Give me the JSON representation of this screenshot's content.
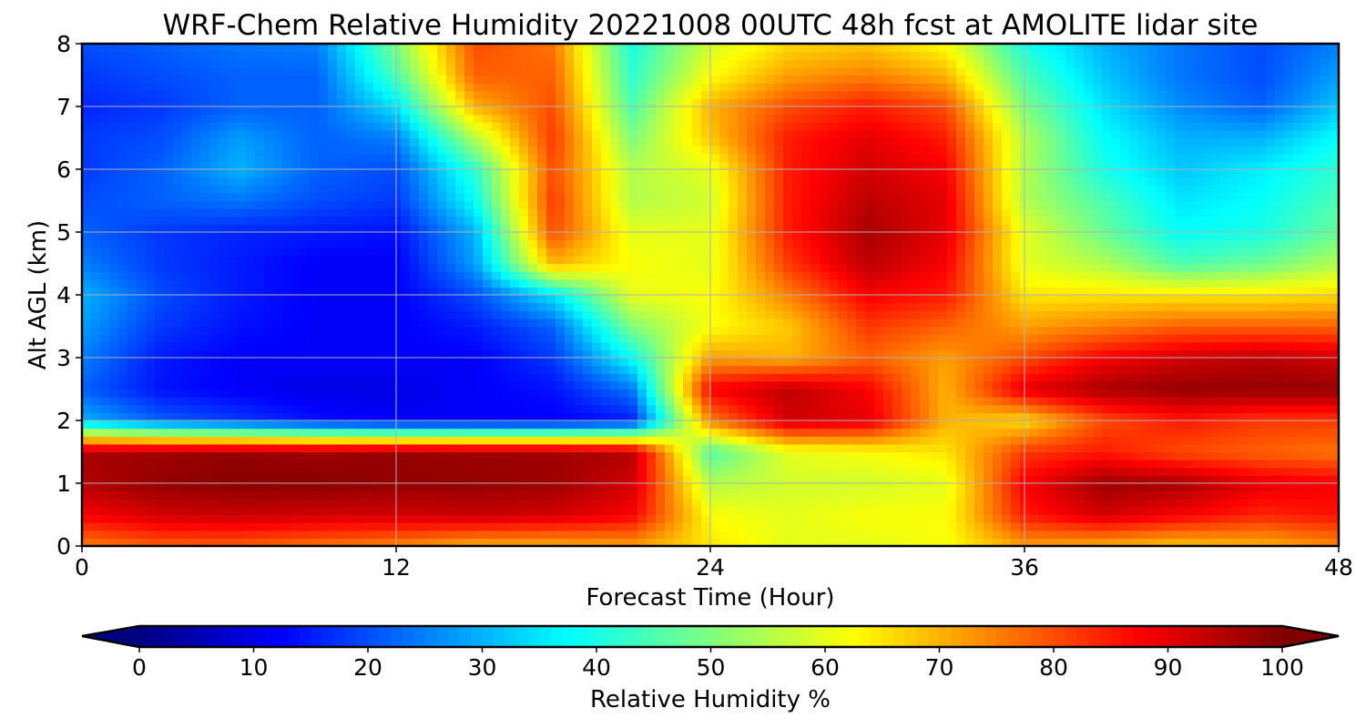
{
  "chart_data": {
    "type": "heatmap",
    "title": "WRF-Chem Relative Humidity 20221008 00UTC 48h fcst at AMOLITE lidar site",
    "xlabel": "Forecast Time (Hour)",
    "ylabel": "Alt AGL (km)",
    "xlim": [
      0,
      48
    ],
    "ylim": [
      0,
      8
    ],
    "x_ticks": [
      "0",
      "12",
      "24",
      "36",
      "48"
    ],
    "y_ticks": [
      "0",
      "1",
      "2",
      "3",
      "4",
      "5",
      "6",
      "7",
      "8"
    ],
    "grid": true,
    "x_hours": [
      0,
      3,
      6,
      9,
      12,
      15,
      18,
      21,
      24,
      27,
      30,
      33,
      36,
      39,
      42,
      45,
      48
    ],
    "z_km": [
      0,
      0.5,
      1,
      1.5,
      2,
      2.5,
      3,
      3.5,
      4,
      4.5,
      5,
      5.5,
      6,
      6.5,
      7,
      7.5,
      8
    ],
    "rh_percent": [
      [
        75,
        78,
        78,
        76,
        74,
        70,
        70,
        72,
        65,
        60,
        60,
        62,
        72,
        70,
        68,
        70,
        74
      ],
      [
        88,
        92,
        93,
        92,
        92,
        93,
        92,
        88,
        62,
        60,
        62,
        62,
        85,
        92,
        88,
        84,
        86
      ],
      [
        95,
        98,
        99,
        99,
        98,
        98,
        97,
        92,
        55,
        58,
        58,
        60,
        88,
        97,
        96,
        90,
        88
      ],
      [
        96,
        97,
        98,
        97,
        98,
        97,
        97,
        95,
        45,
        60,
        62,
        65,
        82,
        85,
        80,
        78,
        76
      ],
      [
        30,
        22,
        18,
        14,
        12,
        12,
        12,
        15,
        75,
        92,
        90,
        70,
        66,
        80,
        85,
        82,
        82
      ],
      [
        22,
        14,
        12,
        10,
        10,
        12,
        14,
        24,
        88,
        94,
        88,
        70,
        90,
        96,
        98,
        98,
        98
      ],
      [
        25,
        15,
        12,
        12,
        12,
        12,
        18,
        38,
        72,
        70,
        78,
        72,
        80,
        88,
        92,
        94,
        92
      ],
      [
        28,
        18,
        14,
        12,
        12,
        15,
        22,
        50,
        62,
        68,
        82,
        78,
        72,
        75,
        78,
        78,
        78
      ],
      [
        30,
        20,
        15,
        12,
        12,
        20,
        35,
        60,
        62,
        75,
        88,
        85,
        65,
        65,
        65,
        65,
        66
      ],
      [
        25,
        18,
        15,
        12,
        12,
        28,
        70,
        62,
        60,
        82,
        94,
        88,
        60,
        55,
        45,
        48,
        55
      ],
      [
        22,
        18,
        16,
        15,
        14,
        30,
        80,
        60,
        60,
        85,
        96,
        90,
        60,
        48,
        38,
        40,
        48
      ],
      [
        20,
        22,
        24,
        20,
        18,
        38,
        82,
        55,
        58,
        85,
        94,
        90,
        55,
        45,
        35,
        38,
        45
      ],
      [
        18,
        22,
        30,
        22,
        20,
        42,
        80,
        55,
        60,
        85,
        92,
        88,
        55,
        40,
        32,
        36,
        42
      ],
      [
        18,
        20,
        28,
        22,
        25,
        55,
        82,
        50,
        68,
        85,
        90,
        85,
        55,
        38,
        30,
        30,
        38
      ],
      [
        16,
        18,
        22,
        22,
        35,
        70,
        80,
        45,
        70,
        80,
        85,
        80,
        50,
        35,
        26,
        22,
        32
      ],
      [
        18,
        20,
        22,
        22,
        45,
        78,
        78,
        42,
        62,
        72,
        75,
        70,
        45,
        32,
        24,
        20,
        28
      ],
      [
        20,
        22,
        24,
        25,
        50,
        80,
        76,
        40,
        58,
        66,
        68,
        62,
        40,
        30,
        24,
        20,
        25
      ]
    ],
    "colorbar": {
      "label": "Relative Humidity %",
      "ticks": [
        "0",
        "10",
        "20",
        "30",
        "40",
        "50",
        "60",
        "70",
        "80",
        "90",
        "100"
      ],
      "min": 0,
      "max": 100,
      "extend": "both",
      "colormap": "jet"
    }
  }
}
